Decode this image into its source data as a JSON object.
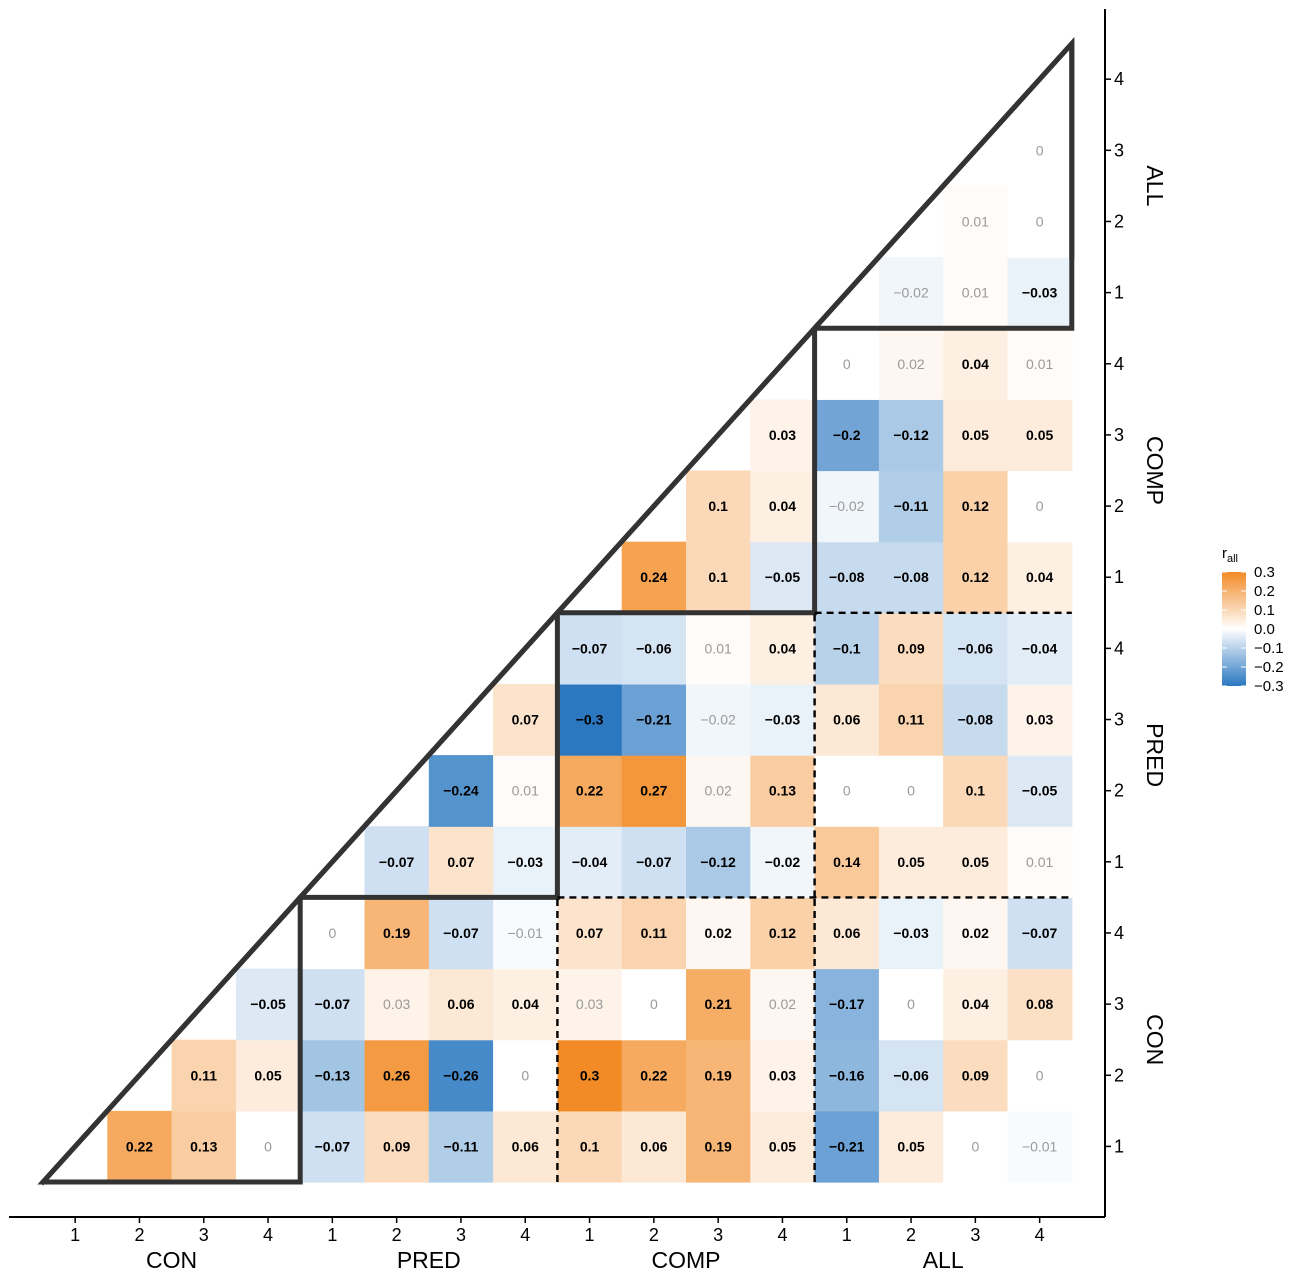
{
  "chart_data": {
    "type": "heatmap",
    "shape": "upper-triangular correlation matrix",
    "groups": [
      "CON",
      "PRED",
      "COMP",
      "ALL"
    ],
    "levels": [
      "1",
      "2",
      "3",
      "4"
    ],
    "x_labels": [
      "1",
      "2",
      "3",
      "4",
      "1",
      "2",
      "3",
      "4",
      "1",
      "2",
      "3",
      "4",
      "1",
      "2",
      "3",
      "4"
    ],
    "y_labels": [
      "1",
      "2",
      "3",
      "4",
      "1",
      "2",
      "3",
      "4",
      "1",
      "2",
      "3",
      "4",
      "1",
      "2",
      "3",
      "4"
    ],
    "matrix_description": "cells[r][c]: r = row index from bottom (0..15), c = column index from left (0..15); null = empty cell",
    "cells": [
      [
        null,
        0.22,
        0.13,
        0,
        -0.07,
        0.09,
        -0.11,
        0.06,
        0.1,
        0.06,
        0.19,
        0.05,
        -0.21,
        0.05,
        0,
        -0.01
      ],
      [
        null,
        null,
        0.11,
        0.05,
        -0.13,
        0.26,
        -0.26,
        0,
        0.3,
        0.22,
        0.19,
        0.03,
        -0.16,
        -0.06,
        0.09,
        0
      ],
      [
        null,
        null,
        null,
        -0.05,
        -0.07,
        0.03,
        0.06,
        0.04,
        0.03,
        0,
        0.21,
        0.02,
        -0.17,
        0,
        0.04,
        0.08
      ],
      [
        null,
        null,
        null,
        null,
        0,
        0.19,
        -0.07,
        -0.01,
        0.07,
        0.11,
        0.02,
        0.12,
        0.06,
        -0.03,
        0.02,
        -0.07
      ],
      [
        null,
        null,
        null,
        null,
        null,
        -0.07,
        0.07,
        -0.03,
        -0.04,
        -0.07,
        -0.12,
        -0.02,
        0.14,
        0.05,
        0.05,
        0.01
      ],
      [
        null,
        null,
        null,
        null,
        null,
        null,
        -0.24,
        0.01,
        0.22,
        0.27,
        0.02,
        0.13,
        0,
        0,
        0.1,
        -0.05
      ],
      [
        null,
        null,
        null,
        null,
        null,
        null,
        null,
        0.07,
        -0.3,
        -0.21,
        -0.02,
        -0.03,
        0.06,
        0.11,
        -0.08,
        0.03
      ],
      [
        null,
        null,
        null,
        null,
        null,
        null,
        null,
        null,
        -0.07,
        -0.06,
        0.01,
        0.04,
        -0.1,
        0.09,
        -0.06,
        -0.04
      ],
      [
        null,
        null,
        null,
        null,
        null,
        null,
        null,
        null,
        null,
        0.24,
        0.1,
        -0.05,
        -0.08,
        -0.08,
        0.12,
        0.04
      ],
      [
        null,
        null,
        null,
        null,
        null,
        null,
        null,
        null,
        null,
        null,
        0.1,
        0.04,
        -0.02,
        -0.11,
        0.12,
        0
      ],
      [
        null,
        null,
        null,
        null,
        null,
        null,
        null,
        null,
        null,
        null,
        null,
        0.03,
        -0.2,
        -0.12,
        0.05,
        0.05
      ],
      [
        null,
        null,
        null,
        null,
        null,
        null,
        null,
        null,
        null,
        null,
        null,
        null,
        0,
        0.02,
        0.04,
        0.01
      ],
      [
        null,
        null,
        null,
        null,
        null,
        null,
        null,
        null,
        null,
        null,
        null,
        null,
        null,
        -0.02,
        0.01,
        -0.03
      ],
      [
        null,
        null,
        null,
        null,
        null,
        null,
        null,
        null,
        null,
        null,
        null,
        null,
        null,
        null,
        0.01,
        0
      ],
      [
        null,
        null,
        null,
        null,
        null,
        null,
        null,
        null,
        null,
        null,
        null,
        null,
        null,
        null,
        null,
        0
      ],
      [
        null,
        null,
        null,
        null,
        null,
        null,
        null,
        null,
        null,
        null,
        null,
        null,
        null,
        null,
        null,
        null
      ]
    ],
    "bold_cells": [
      [
        0,
        1
      ],
      [
        0,
        2
      ],
      [
        0,
        4
      ],
      [
        0,
        5
      ],
      [
        0,
        6
      ],
      [
        0,
        7
      ],
      [
        0,
        8
      ],
      [
        0,
        9
      ],
      [
        0,
        10
      ],
      [
        0,
        11
      ],
      [
        0,
        12
      ],
      [
        0,
        13
      ],
      [
        1,
        2
      ],
      [
        1,
        3
      ],
      [
        1,
        4
      ],
      [
        1,
        5
      ],
      [
        1,
        6
      ],
      [
        1,
        8
      ],
      [
        1,
        9
      ],
      [
        1,
        10
      ],
      [
        1,
        11
      ],
      [
        1,
        12
      ],
      [
        1,
        13
      ],
      [
        1,
        14
      ],
      [
        2,
        3
      ],
      [
        2,
        4
      ],
      [
        2,
        6
      ],
      [
        2,
        7
      ],
      [
        2,
        10
      ],
      [
        2,
        12
      ],
      [
        2,
        14
      ],
      [
        2,
        15
      ],
      [
        3,
        5
      ],
      [
        3,
        6
      ],
      [
        3,
        8
      ],
      [
        3,
        9
      ],
      [
        3,
        10
      ],
      [
        3,
        11
      ],
      [
        3,
        12
      ],
      [
        3,
        13
      ],
      [
        3,
        14
      ],
      [
        3,
        15
      ],
      [
        4,
        5
      ],
      [
        4,
        6
      ],
      [
        4,
        7
      ],
      [
        4,
        8
      ],
      [
        4,
        9
      ],
      [
        4,
        10
      ],
      [
        4,
        11
      ],
      [
        4,
        12
      ],
      [
        4,
        13
      ],
      [
        4,
        14
      ],
      [
        5,
        6
      ],
      [
        5,
        8
      ],
      [
        5,
        9
      ],
      [
        5,
        11
      ],
      [
        5,
        14
      ],
      [
        5,
        15
      ],
      [
        6,
        7
      ],
      [
        6,
        8
      ],
      [
        6,
        9
      ],
      [
        6,
        11
      ],
      [
        6,
        12
      ],
      [
        6,
        13
      ],
      [
        6,
        14
      ],
      [
        6,
        15
      ],
      [
        7,
        8
      ],
      [
        7,
        9
      ],
      [
        7,
        11
      ],
      [
        7,
        12
      ],
      [
        7,
        13
      ],
      [
        7,
        14
      ],
      [
        7,
        15
      ],
      [
        8,
        9
      ],
      [
        8,
        10
      ],
      [
        8,
        11
      ],
      [
        8,
        12
      ],
      [
        8,
        13
      ],
      [
        8,
        14
      ],
      [
        8,
        15
      ],
      [
        9,
        10
      ],
      [
        9,
        11
      ],
      [
        9,
        13
      ],
      [
        9,
        14
      ],
      [
        10,
        11
      ],
      [
        10,
        12
      ],
      [
        10,
        13
      ],
      [
        10,
        14
      ],
      [
        10,
        15
      ],
      [
        11,
        14
      ],
      [
        12,
        15
      ]
    ],
    "color_scale": {
      "low": "#2b78c1",
      "mid": "#ffffff",
      "high": "#f28b26",
      "domain": [
        -0.3,
        0.3
      ]
    },
    "legend": {
      "title_main": "r",
      "title_sub": "all",
      "ticks": [
        "0.3",
        "0.2",
        "0.1",
        "0.0",
        "−0.1",
        "−0.2",
        "−0.3"
      ],
      "tick_values": [
        0.3,
        0.2,
        0.1,
        0.0,
        -0.1,
        -0.2,
        -0.3
      ],
      "placement": "right"
    },
    "outlines": "thick triangles around within-group blocks on diagonal; dashed lines separating off-diagonal group blocks"
  }
}
